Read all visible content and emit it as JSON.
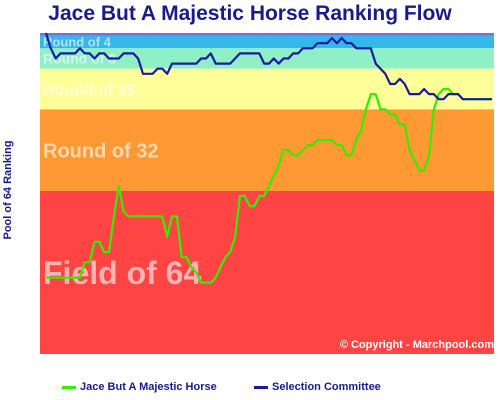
{
  "chart_data": {
    "type": "line",
    "title": "Jace But A Majestic Horse Ranking Flow",
    "ylabel": "Pool of 64 Ranking",
    "credit": "© Copyright - Marchpool.com",
    "ylim": [
      1,
      64
    ],
    "y_reversed": true,
    "bands": [
      {
        "label": "",
        "from": 1,
        "to": 1.5,
        "color": "#7a6fd6"
      },
      {
        "label": "Round of 4",
        "from": 1.5,
        "to": 4,
        "color": "#35b8e8"
      },
      {
        "label": "Round of 8",
        "from": 4,
        "to": 8,
        "color": "#8ff0c8"
      },
      {
        "label": "Round of 16",
        "from": 8,
        "to": 16,
        "color": "#ffff99"
      },
      {
        "label": "Round of 32",
        "from": 16,
        "to": 32,
        "color": "#ff9933"
      },
      {
        "label": "Field of 64",
        "from": 32,
        "to": 64,
        "color": "#ff4444"
      }
    ],
    "series": [
      {
        "name": "Jace But A Majestic Horse",
        "color": "#33ee00",
        "values": [
          49,
          49,
          49,
          49,
          49,
          49,
          49,
          49,
          46,
          46,
          42,
          42,
          44,
          44,
          37,
          31,
          36,
          37,
          37,
          37,
          37,
          37,
          37,
          37,
          37,
          41,
          37,
          37,
          45,
          45,
          47,
          48,
          50,
          50,
          50,
          49,
          47,
          45,
          44,
          41,
          33,
          33,
          35,
          35,
          33,
          33,
          31,
          29,
          27,
          24,
          24,
          25,
          25,
          24,
          23,
          23,
          22,
          22,
          22,
          22,
          23,
          23,
          25,
          25,
          22,
          20,
          16,
          13,
          13,
          16,
          16,
          17,
          17,
          19,
          19,
          24,
          26,
          28,
          28,
          25,
          16,
          13,
          12,
          12,
          13,
          13,
          14,
          14,
          14,
          14,
          14,
          14,
          14
        ]
      },
      {
        "name": "Selection Committee",
        "color": "#1a1aa0",
        "values": [
          1,
          4,
          6,
          5,
          5,
          5,
          5,
          4,
          5,
          5,
          6,
          5,
          5,
          6,
          6,
          6,
          5,
          5,
          5,
          6,
          9,
          9,
          9,
          8,
          8,
          9,
          7,
          7,
          7,
          7,
          7,
          7,
          6,
          6,
          5,
          7,
          7,
          7,
          7,
          6,
          5,
          5,
          5,
          5,
          5,
          7,
          7,
          6,
          7,
          6,
          6,
          5,
          5,
          4,
          4,
          4,
          3,
          3,
          3,
          2,
          3,
          2,
          3,
          3,
          4,
          4,
          4,
          4,
          7,
          8,
          9,
          11,
          11,
          10,
          11,
          13,
          13,
          13,
          12,
          13,
          13,
          14,
          14,
          13,
          13,
          13,
          14,
          14,
          14,
          14,
          14,
          14,
          14
        ]
      }
    ]
  }
}
